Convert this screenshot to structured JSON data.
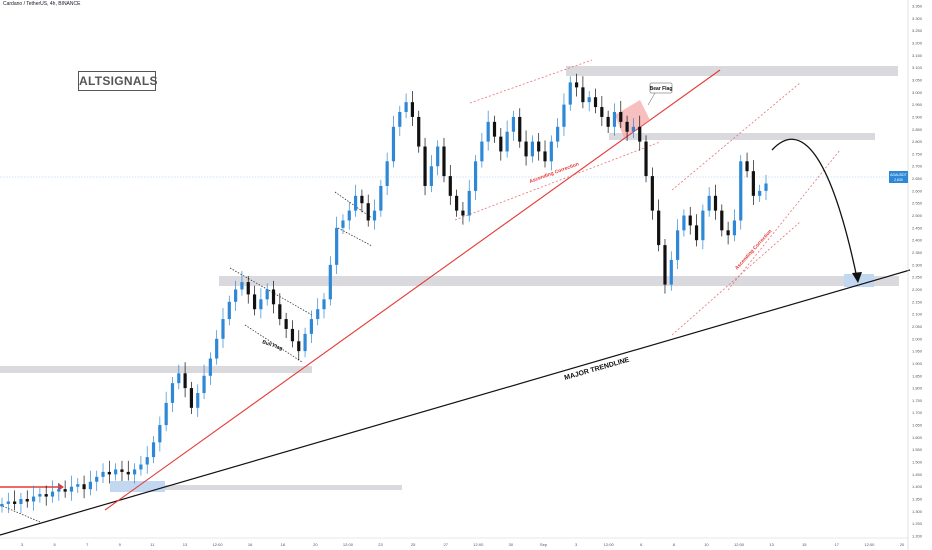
{
  "header": {
    "symbol_line": "Cardano / TetherUS, 4h, BINANCE"
  },
  "logo": {
    "text": "ALTSIGNALS"
  },
  "colors": {
    "bull_candle": "#2e88d6",
    "bear_candle": "#111111",
    "zone_fill": "#d9d9de",
    "highlight_zone": "#c2d8f0",
    "trendline_red": "#e53935",
    "major_trendline": "#111111",
    "channel_dotted_red": "#e57373",
    "bear_flag_fill": "#f4a9a8",
    "price_line": "#9fc8f0"
  },
  "annotations": {
    "bear_flag": "Bear Flag",
    "bull_flag": "Bull Flag",
    "ascending_correction_1": "Ascending Correction",
    "ascending_correction_2": "Ascending Correction",
    "major_trendline": "MAJOR TRENDLINE"
  },
  "price_tag": {
    "symbol": "ADAUSDT",
    "value": "2.630",
    "countdown": "02:35:13"
  },
  "chart_data": {
    "type": "candlestick",
    "title": "Cardano / TetherUS, 4h, BINANCE",
    "ylim": [
      1.2,
      3.35
    ],
    "y_ticks": [
      "3.350",
      "3.300",
      "3.250",
      "3.200",
      "3.150",
      "3.100",
      "3.050",
      "3.000",
      "2.950",
      "2.900",
      "2.850",
      "2.800",
      "2.750",
      "2.700",
      "2.650",
      "2.600",
      "2.550",
      "2.500",
      "2.450",
      "2.400",
      "2.350",
      "2.300",
      "2.250",
      "2.200",
      "2.150",
      "2.100",
      "2.050",
      "2.000",
      "1.950",
      "1.900",
      "1.850",
      "1.800",
      "1.750",
      "1.700",
      "1.650",
      "1.600",
      "1.550",
      "1.500",
      "1.450",
      "1.400",
      "1.350",
      "1.300",
      "1.250",
      "1.200"
    ],
    "x_ticks": [
      "3",
      "5",
      "7",
      "9",
      "11",
      "13",
      "12:00",
      "16",
      "18",
      "20",
      "12:00",
      "23",
      "25",
      "27",
      "12:00",
      "30",
      "Sep",
      "3",
      "12:00",
      "6",
      "8",
      "10",
      "12:00",
      "13",
      "15",
      "17",
      "12:00",
      "20"
    ],
    "current_price": 2.63,
    "ohlc_close_series": [
      1.33,
      1.34,
      1.33,
      1.35,
      1.34,
      1.36,
      1.37,
      1.36,
      1.38,
      1.39,
      1.38,
      1.4,
      1.41,
      1.39,
      1.42,
      1.44,
      1.46,
      1.45,
      1.47,
      1.46,
      1.45,
      1.47,
      1.49,
      1.52,
      1.58,
      1.65,
      1.74,
      1.82,
      1.86,
      1.8,
      1.72,
      1.78,
      1.85,
      1.92,
      2.0,
      2.08,
      2.15,
      2.2,
      2.23,
      2.18,
      2.12,
      2.16,
      2.2,
      2.14,
      2.08,
      2.04,
      1.99,
      1.95,
      2.02,
      2.08,
      2.12,
      2.16,
      2.3,
      2.45,
      2.48,
      2.52,
      2.58,
      2.55,
      2.48,
      2.52,
      2.62,
      2.72,
      2.86,
      2.92,
      2.96,
      2.9,
      2.78,
      2.62,
      2.7,
      2.78,
      2.66,
      2.58,
      2.52,
      2.5,
      2.6,
      2.72,
      2.8,
      2.88,
      2.82,
      2.76,
      2.84,
      2.9,
      2.8,
      2.74,
      2.8,
      2.76,
      2.72,
      2.8,
      2.86,
      2.95,
      3.04,
      3.02,
      2.96,
      2.98,
      2.94,
      2.9,
      2.86,
      2.92,
      2.88,
      2.84,
      2.86,
      2.8,
      2.66,
      2.52,
      2.38,
      2.22,
      2.32,
      2.44,
      2.5,
      2.46,
      2.4,
      2.52,
      2.58,
      2.52,
      2.44,
      2.42,
      2.48,
      2.72,
      2.68,
      2.58,
      2.6,
      2.63
    ],
    "zones": [
      {
        "from": 3.04,
        "to": 3.08,
        "label": ""
      },
      {
        "from": 2.79,
        "to": 2.82,
        "label": ""
      },
      {
        "from": 2.2,
        "to": 2.24,
        "label": ""
      },
      {
        "from": 1.86,
        "to": 1.88,
        "label": ""
      },
      {
        "from": 1.39,
        "to": 1.4,
        "label": ""
      }
    ]
  }
}
